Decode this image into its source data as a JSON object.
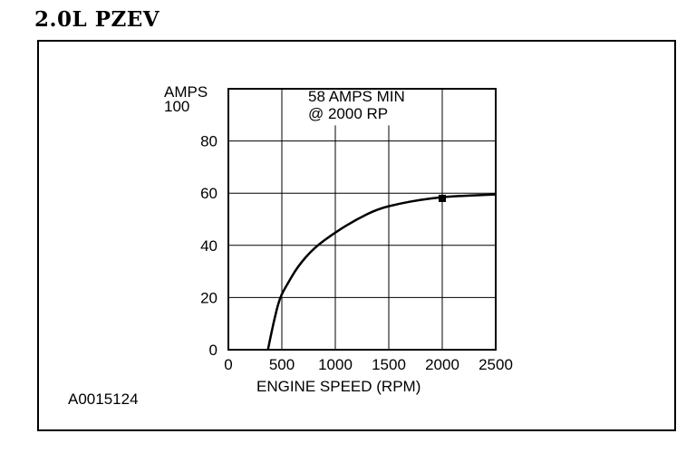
{
  "header": {
    "title": "2.0L  PZEV"
  },
  "figure_id": "A0015124",
  "chart_data": {
    "type": "line",
    "xlabel": "ENGINE SPEED (RPM)",
    "ylabel": "AMPS",
    "xlim": [
      0,
      2500
    ],
    "ylim": [
      0,
      100
    ],
    "x_ticks": [
      0,
      500,
      1000,
      1500,
      2000,
      2500
    ],
    "y_ticks": [
      0,
      20,
      40,
      60,
      80,
      100
    ],
    "grid": true,
    "annotation": {
      "lines": [
        "58 AMPS MIN",
        "@ 2000 RP"
      ],
      "marker_x": 2000,
      "marker_y": 58
    },
    "series": [
      {
        "x": [
          370,
          420,
          480,
          550,
          650,
          800,
          1000,
          1200,
          1400,
          1600,
          1800,
          2000,
          2200,
          2500
        ],
        "values": [
          0,
          10,
          20,
          25,
          32,
          39,
          45,
          50,
          54,
          56,
          57.5,
          58.5,
          59,
          59.5
        ]
      }
    ]
  }
}
